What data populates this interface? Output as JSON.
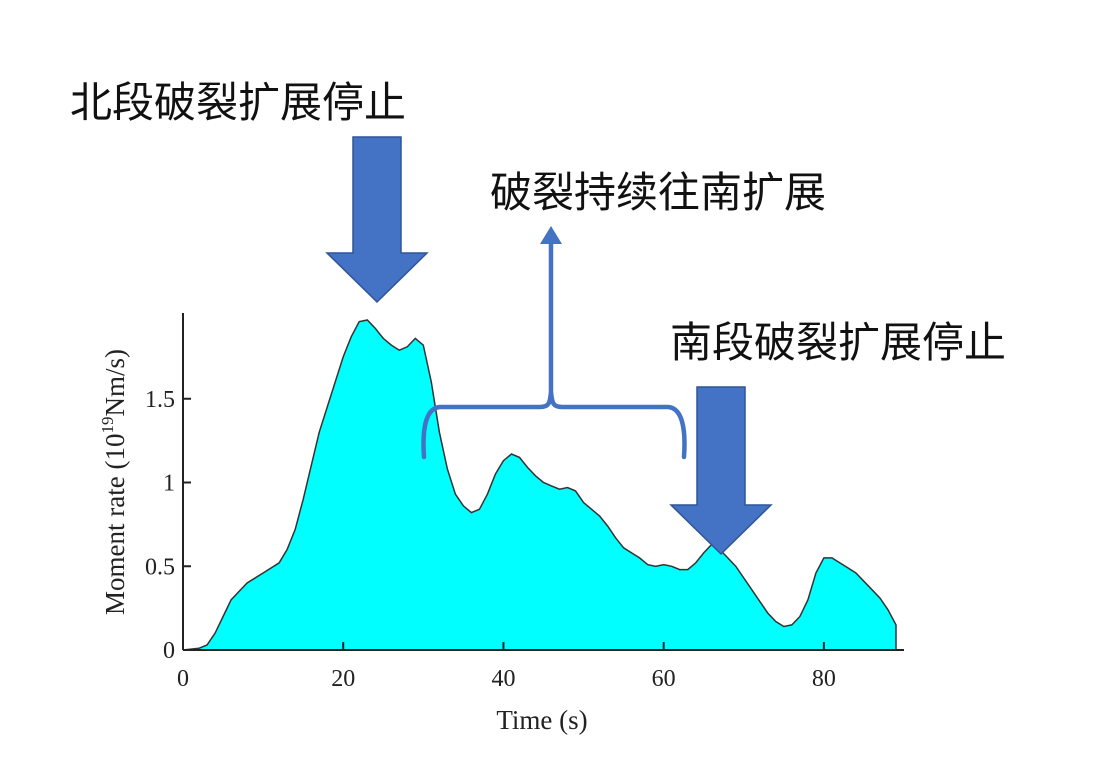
{
  "annotations": {
    "north_stop": "北段破裂扩展停止",
    "continue_south": "破裂持续往南扩展",
    "south_stop": "南段破裂扩展停止"
  },
  "colors": {
    "fill": "#00ffff",
    "outline": "#333333",
    "arrow": "#4472c4",
    "bracket": "#4472c4",
    "axis": "#222222"
  },
  "chart_data": {
    "type": "area",
    "title": "",
    "xlabel": "Time (s)",
    "ylabel_main": "Moment rate (10",
    "ylabel_sup": "19",
    "ylabel_tail": "Nm/s)",
    "xlim": [
      0,
      90
    ],
    "ylim": [
      0,
      2.0
    ],
    "xticks": [
      0,
      20,
      40,
      60,
      80
    ],
    "xtick_labels": [
      "0",
      "20",
      "40",
      "60",
      "80"
    ],
    "yticks": [
      0,
      0.5,
      1,
      1.5
    ],
    "ytick_labels": [
      "0",
      "0.5",
      "1",
      "1.5"
    ],
    "grid": false,
    "x": [
      0,
      2,
      3,
      4,
      5,
      6,
      7,
      8,
      10,
      12,
      13,
      14,
      15,
      16,
      17,
      18,
      19,
      20,
      21,
      22,
      23,
      24,
      25,
      26,
      27,
      28,
      29,
      30,
      31,
      32,
      33,
      34,
      35,
      36,
      37,
      38,
      39,
      40,
      41,
      42,
      43,
      44,
      45,
      46,
      47,
      48,
      49,
      50,
      51,
      52,
      53,
      54,
      55,
      56,
      57,
      58,
      59,
      60,
      61,
      62,
      63,
      64,
      65,
      66,
      67,
      68,
      69,
      70,
      71,
      72,
      73,
      74,
      75,
      76,
      77,
      78,
      79,
      80,
      81,
      82,
      83,
      84,
      85,
      86,
      87,
      88,
      89
    ],
    "y": [
      0,
      0.01,
      0.03,
      0.1,
      0.2,
      0.3,
      0.35,
      0.4,
      0.46,
      0.52,
      0.6,
      0.72,
      0.9,
      1.1,
      1.3,
      1.45,
      1.6,
      1.75,
      1.87,
      1.96,
      1.97,
      1.92,
      1.86,
      1.82,
      1.79,
      1.81,
      1.86,
      1.82,
      1.6,
      1.3,
      1.08,
      0.93,
      0.86,
      0.82,
      0.84,
      0.93,
      1.05,
      1.13,
      1.17,
      1.15,
      1.09,
      1.04,
      1.0,
      0.98,
      0.96,
      0.97,
      0.95,
      0.88,
      0.84,
      0.8,
      0.74,
      0.67,
      0.61,
      0.58,
      0.55,
      0.51,
      0.5,
      0.51,
      0.5,
      0.48,
      0.48,
      0.52,
      0.58,
      0.63,
      0.6,
      0.55,
      0.5,
      0.43,
      0.36,
      0.29,
      0.22,
      0.17,
      0.14,
      0.15,
      0.2,
      0.3,
      0.46,
      0.55,
      0.55,
      0.52,
      0.49,
      0.46,
      0.41,
      0.36,
      0.31,
      0.24,
      0.15
    ]
  }
}
